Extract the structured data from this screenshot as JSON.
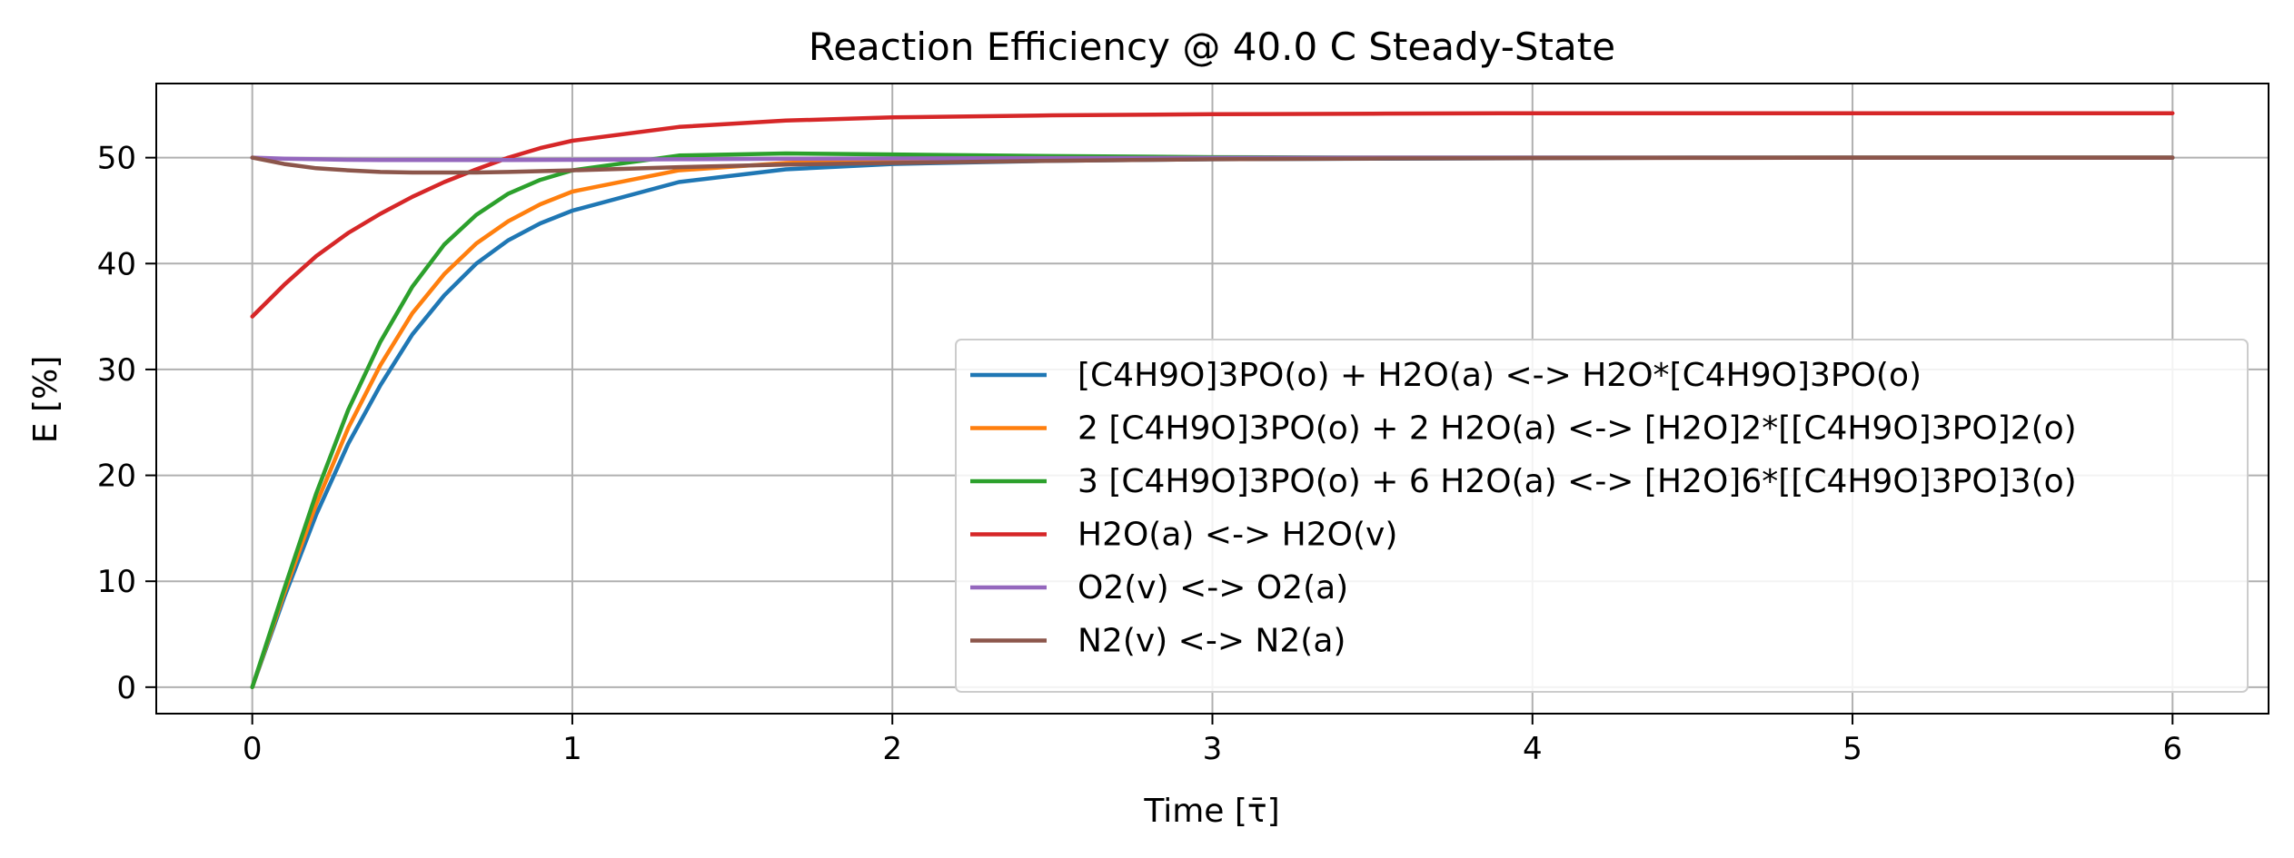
{
  "chart_data": {
    "type": "line",
    "title": "Reaction Efficiency @ 40.0 C Steady-State",
    "xlabel": "Time [τ̄]",
    "ylabel": "E [%]",
    "xlim": [
      -0.3,
      6.3
    ],
    "ylim": [
      -2.5,
      57
    ],
    "xticks": [
      0,
      1,
      2,
      3,
      4,
      5,
      6
    ],
    "yticks": [
      0,
      10,
      20,
      30,
      40,
      50
    ],
    "grid": true,
    "legend_position": "lower-right",
    "series": [
      {
        "name": "[C4H9O]3PO(o) + H2O(a) <-> H2O*[C4H9O]3PO(o)",
        "color": "#1f77b4",
        "x": [
          0,
          0.1,
          0.2,
          0.3,
          0.4,
          0.5,
          0.6,
          0.7,
          0.8,
          0.9,
          1.0,
          1.333,
          1.667,
          2.0,
          2.5,
          3.0,
          3.5,
          4.0,
          4.5,
          5.0,
          5.5,
          6.0
        ],
        "y": [
          0,
          8.5,
          16.3,
          23.0,
          28.5,
          33.3,
          37.0,
          40.0,
          42.2,
          43.8,
          45.0,
          47.7,
          48.9,
          49.4,
          49.7,
          49.85,
          49.9,
          49.95,
          50,
          50,
          50,
          50
        ]
      },
      {
        "name": "2 [C4H9O]3PO(o) + 2 H2O(a) <-> [H2O]2*[[C4H9O]3PO]2(o)",
        "color": "#ff7f0e",
        "x": [
          0,
          0.1,
          0.2,
          0.3,
          0.4,
          0.5,
          0.6,
          0.7,
          0.8,
          0.9,
          1.0,
          1.333,
          1.667,
          2.0,
          2.5,
          3.0,
          3.5,
          4.0,
          4.5,
          5.0,
          5.5,
          6.0
        ],
        "y": [
          0,
          8.9,
          17.3,
          24.5,
          30.4,
          35.3,
          39.0,
          41.9,
          44.0,
          45.6,
          46.8,
          48.8,
          49.5,
          49.8,
          49.9,
          49.95,
          50,
          50,
          50,
          50,
          50,
          50
        ]
      },
      {
        "name": "3 [C4H9O]3PO(o) + 6 H2O(a) <-> [H2O]6*[[C4H9O]3PO]3(o)",
        "color": "#2ca02c",
        "x": [
          0,
          0.1,
          0.2,
          0.3,
          0.4,
          0.5,
          0.6,
          0.7,
          0.8,
          0.9,
          1.0,
          1.333,
          1.667,
          2.0,
          2.5,
          3.0,
          3.5,
          4.0,
          4.5,
          5.0,
          5.5,
          6.0
        ],
        "y": [
          0,
          9.3,
          18.3,
          26.2,
          32.6,
          37.8,
          41.8,
          44.6,
          46.6,
          47.9,
          48.8,
          50.2,
          50.4,
          50.3,
          50.15,
          50.05,
          50,
          50,
          50,
          50,
          50,
          50
        ]
      },
      {
        "name": "H2O(a) <-> H2O(v)",
        "color": "#d62728",
        "x": [
          0,
          0.1,
          0.2,
          0.3,
          0.4,
          0.5,
          0.6,
          0.7,
          0.8,
          0.9,
          1.0,
          1.333,
          1.667,
          2.0,
          2.5,
          3.0,
          3.5,
          4.0,
          4.5,
          5.0,
          5.5,
          6.0
        ],
        "y": [
          35.0,
          38.0,
          40.7,
          42.9,
          44.7,
          46.3,
          47.7,
          48.9,
          50.0,
          50.9,
          51.6,
          52.9,
          53.5,
          53.8,
          54.0,
          54.1,
          54.15,
          54.2,
          54.2,
          54.2,
          54.2,
          54.2
        ]
      },
      {
        "name": "O2(v) <-> O2(a)",
        "color": "#9467bd",
        "x": [
          0,
          0.1,
          0.2,
          0.3,
          0.4,
          0.5,
          0.6,
          0.7,
          0.8,
          1.0,
          1.333,
          1.667,
          2.0,
          2.5,
          3.0,
          3.5,
          4.0,
          4.5,
          5.0,
          5.5,
          6.0
        ],
        "y": [
          50.0,
          49.9,
          49.85,
          49.8,
          49.78,
          49.77,
          49.77,
          49.77,
          49.78,
          49.8,
          49.85,
          49.9,
          49.93,
          49.96,
          49.98,
          50,
          50,
          50,
          50,
          50,
          50
        ]
      },
      {
        "name": "N2(v) <-> N2(a)",
        "color": "#8c564b",
        "x": [
          0,
          0.1,
          0.2,
          0.3,
          0.4,
          0.5,
          0.6,
          0.7,
          0.8,
          1.0,
          1.333,
          1.667,
          2.0,
          2.5,
          3.0,
          3.5,
          4.0,
          4.5,
          5.0,
          5.5,
          6.0
        ],
        "y": [
          50.0,
          49.4,
          49.0,
          48.8,
          48.65,
          48.6,
          48.6,
          48.6,
          48.65,
          48.8,
          49.1,
          49.35,
          49.5,
          49.7,
          49.85,
          49.92,
          49.96,
          49.98,
          50,
          50,
          50
        ]
      }
    ]
  }
}
